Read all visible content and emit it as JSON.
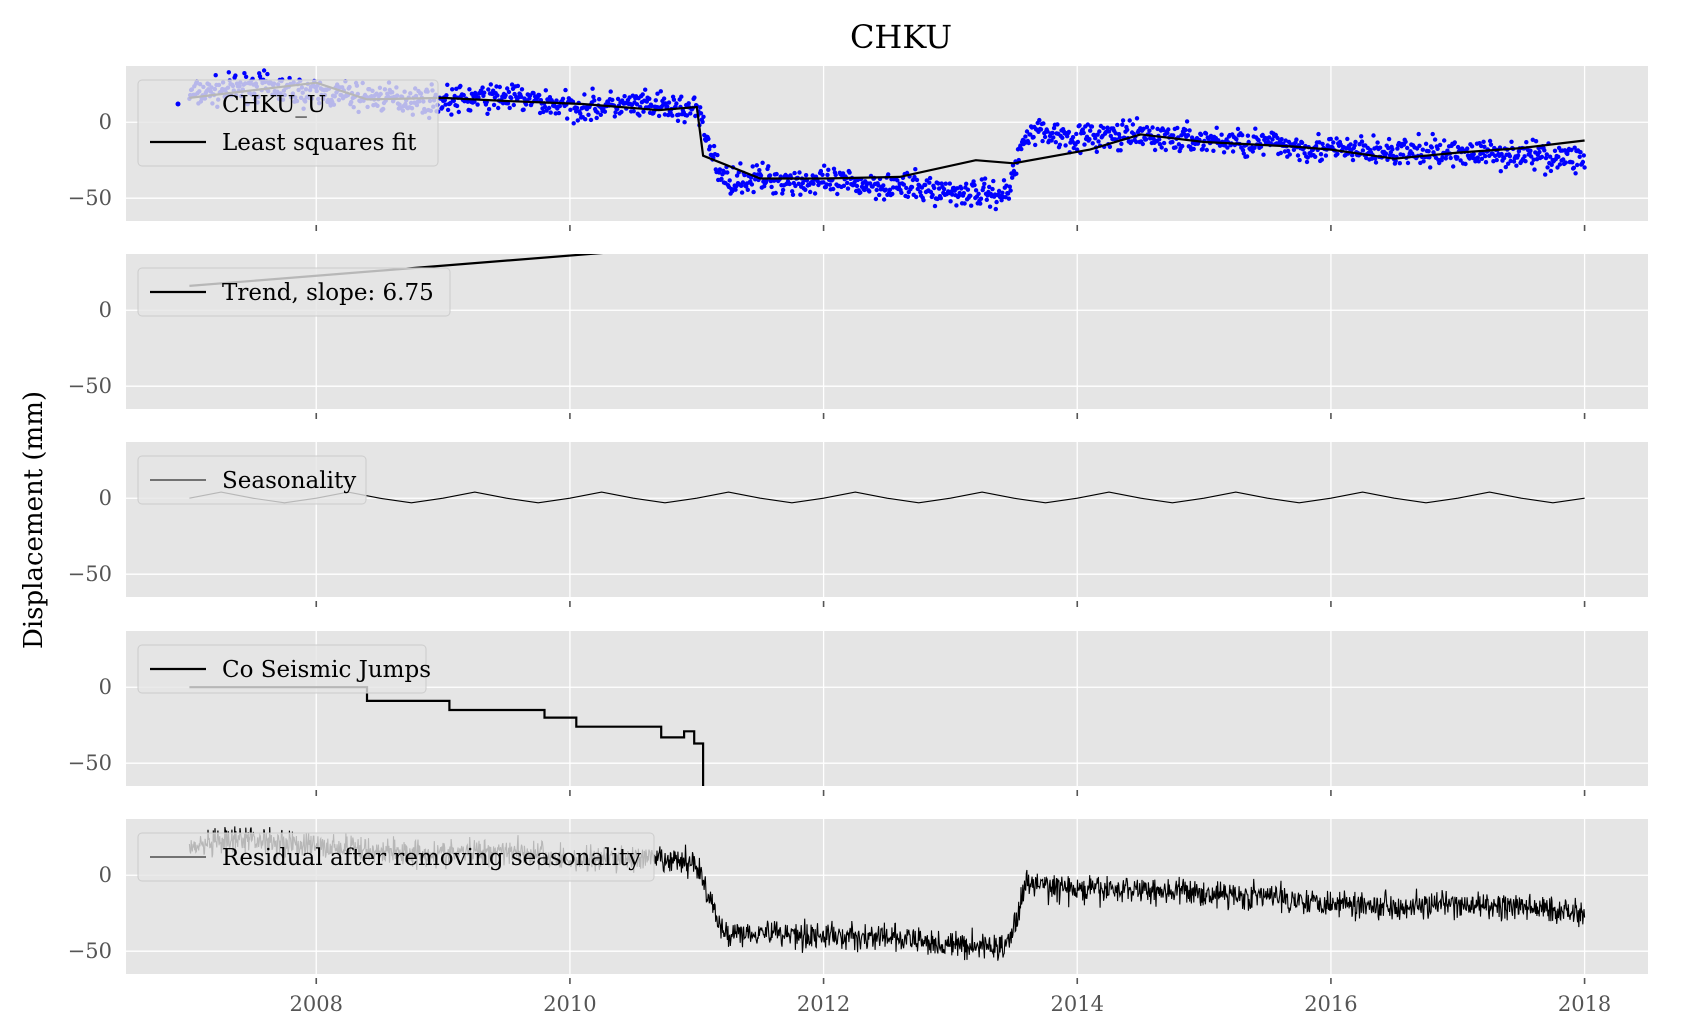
{
  "chart_data": {
    "type": "line",
    "title": "CHKU",
    "ylabel": "Displacement (mm)",
    "xlim": [
      2006.5,
      2018.5
    ],
    "ylim": [
      -65,
      37
    ],
    "x_ticks": [
      2008,
      2010,
      2012,
      2014,
      2016,
      2018
    ],
    "x_tick_labels": [
      "2008",
      "2010",
      "2012",
      "2014",
      "2016",
      "2018"
    ],
    "y_ticks": [
      0,
      -50
    ],
    "y_tick_labels": [
      "0",
      "−50"
    ],
    "grid": true,
    "legend_placement": "upper-left",
    "panels": [
      {
        "legend": [
          "CHKU_U",
          "Least squares fit"
        ],
        "series": [
          {
            "name": "CHKU_U",
            "type": "scatter",
            "color": "#0000ff",
            "x": [
              2007.0,
              2007.5,
              2008.0,
              2008.5,
              2009.0,
              2009.5,
              2010.0,
              2010.5,
              2011.0,
              2011.2,
              2011.5,
              2012.0,
              2012.5,
              2013.0,
              2013.45,
              2013.6,
              2014.0,
              2014.5,
              2015.0,
              2015.5,
              2016.0,
              2016.5,
              2017.0,
              2017.5,
              2018.0
            ],
            "y": [
              18,
              24,
              19,
              16,
              14,
              17,
              10,
              11,
              8,
              -38,
              -37,
              -40,
              -41,
              -46,
              -47,
              -5,
              -10,
              -9,
              -12,
              -14,
              -18,
              -20,
              -20,
              -21,
              -24
            ]
          },
          {
            "name": "Least squares fit",
            "type": "line",
            "color": "#000000",
            "x": [
              2007.0,
              2008.0,
              2008.4,
              2009.0,
              2009.5,
              2009.8,
              2010.1,
              2010.7,
              2011.0,
              2011.05,
              2011.5,
              2012.0,
              2012.6,
              2013.2,
              2013.5,
              2014.1,
              2014.5,
              2015.0,
              2015.7,
              2016.0,
              2016.5,
              2017.0,
              2017.5,
              2018.0
            ],
            "y": [
              16,
              26,
              15,
              16,
              14,
              13,
              12,
              8,
              10,
              -22,
              -37,
              -37,
              -36,
              -25,
              -27,
              -18,
              -8,
              -13,
              -16,
              -18,
              -24,
              -20,
              -17,
              -12
            ]
          }
        ]
      },
      {
        "legend": [
          "Trend, slope: 6.75"
        ],
        "series": [
          {
            "name": "Trend, slope: 6.75",
            "type": "line",
            "color": "#000000",
            "x": [
              2007.0,
              2010.45
            ],
            "y": [
              16,
              39
            ]
          }
        ]
      },
      {
        "legend": [
          "Seasonality"
        ],
        "series": [
          {
            "name": "Seasonality",
            "type": "line",
            "color": "#000000",
            "x": [
              2007.0,
              2007.25,
              2007.5,
              2007.75,
              2008.0,
              2008.25,
              2008.5,
              2008.75,
              2009.0,
              2009.25,
              2009.5,
              2009.75,
              2010.0,
              2010.25,
              2010.5,
              2010.75,
              2011.0,
              2011.25,
              2011.5,
              2011.75,
              2012.0,
              2012.25,
              2012.5,
              2012.75,
              2013.0,
              2013.25,
              2013.5,
              2013.75,
              2014.0,
              2014.25,
              2014.5,
              2014.75,
              2015.0,
              2015.25,
              2015.5,
              2015.75,
              2016.0,
              2016.25,
              2016.5,
              2016.75,
              2017.0,
              2017.25,
              2017.5,
              2017.75,
              2018.0
            ],
            "y": [
              0,
              4,
              0,
              -3,
              0,
              4,
              0,
              -3,
              0,
              4,
              0,
              -3,
              0,
              4,
              0,
              -3,
              0,
              4,
              0,
              -3,
              0,
              4,
              0,
              -3,
              0,
              4,
              0,
              -3,
              0,
              4,
              0,
              -3,
              0,
              4,
              0,
              -3,
              0,
              4,
              0,
              -3,
              0,
              4,
              0,
              -3,
              0
            ]
          }
        ]
      },
      {
        "legend": [
          "Co Seismic Jumps"
        ],
        "series": [
          {
            "name": "Co Seismic Jumps",
            "type": "step",
            "color": "#000000",
            "x": [
              2007.0,
              2008.4,
              2008.4,
              2009.05,
              2009.05,
              2009.8,
              2009.8,
              2010.05,
              2010.05,
              2010.72,
              2010.72,
              2010.9,
              2010.9,
              2010.98,
              2010.98,
              2011.05,
              2011.05
            ],
            "y": [
              0,
              0,
              -9,
              -9,
              -15,
              -15,
              -20,
              -20,
              -26,
              -26,
              -33,
              -33,
              -29,
              -29,
              -37,
              -37,
              -65
            ]
          }
        ]
      },
      {
        "legend": [
          "Residual after removing seasonality"
        ],
        "series": [
          {
            "name": "Residual after removing seasonality",
            "type": "line",
            "color": "#000000",
            "x": [
              2007.0,
              2007.5,
              2008.0,
              2008.5,
              2009.0,
              2009.5,
              2010.0,
              2010.5,
              2011.0,
              2011.2,
              2011.5,
              2012.0,
              2012.5,
              2013.0,
              2013.45,
              2013.6,
              2014.0,
              2014.5,
              2015.0,
              2015.5,
              2016.0,
              2016.5,
              2017.0,
              2017.5,
              2018.0
            ],
            "y": [
              18,
              24,
              19,
              16,
              14,
              17,
              10,
              11,
              8,
              -38,
              -37,
              -40,
              -41,
              -46,
              -47,
              -5,
              -10,
              -9,
              -12,
              -14,
              -18,
              -20,
              -20,
              -21,
              -24
            ]
          }
        ]
      }
    ]
  },
  "colors": {
    "panel_background": "#e5e5e5",
    "grid": "#ffffff",
    "scatter": "#0000ff",
    "line": "#000000",
    "tick_label": "#555555"
  }
}
